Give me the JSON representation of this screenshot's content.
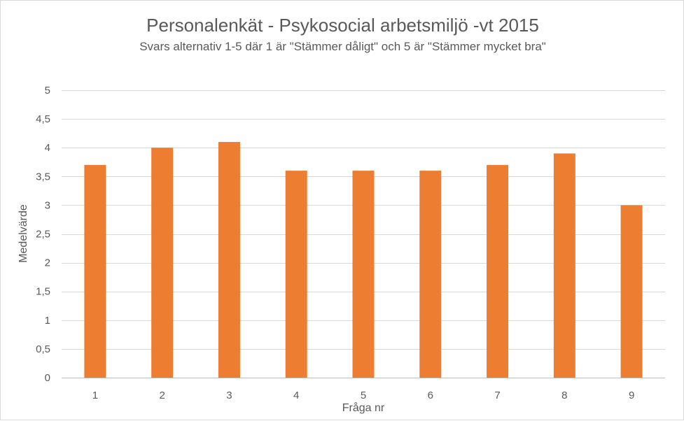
{
  "chart_data": {
    "type": "bar",
    "title": "Personalenkät - Psykosocial arbetsmiljö -vt 2015",
    "subtitle": "Svars alternativ 1-5 där 1 är \"Stämmer dåligt\" och 5 är \"Stämmer mycket bra\"",
    "xlabel": "Fråga nr",
    "ylabel": "Medelvärde",
    "categories": [
      "1",
      "2",
      "3",
      "4",
      "5",
      "6",
      "7",
      "8",
      "9"
    ],
    "values": [
      3.7,
      4.0,
      4.1,
      3.6,
      3.6,
      3.6,
      3.7,
      3.9,
      3.0
    ],
    "ylim": [
      0,
      5
    ],
    "yticks": [
      "0",
      "0,5",
      "1",
      "1,5",
      "2",
      "2,5",
      "3",
      "3,5",
      "4",
      "4,5",
      "5"
    ],
    "grid": true,
    "legend": "none",
    "bar_color": "#ED7D31",
    "grid_color": "#D9D9D9",
    "text_color": "#595959"
  }
}
